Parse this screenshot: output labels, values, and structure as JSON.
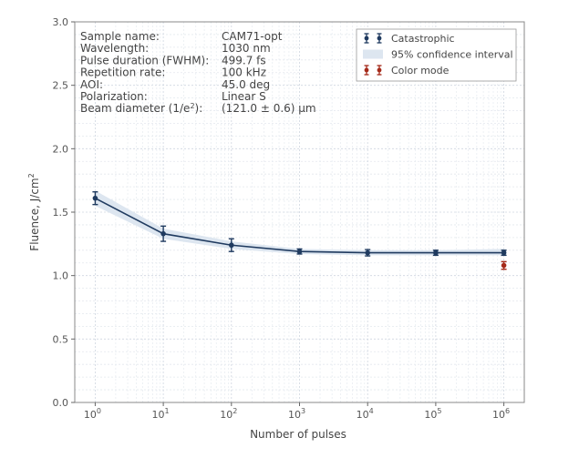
{
  "chart_data": {
    "type": "line",
    "xscale": "log",
    "xlabel": "Number of pulses",
    "ylabel_main": "Fluence, J/cm",
    "ylabel_sup": "2",
    "ylim": [
      0,
      3.0
    ],
    "xlim_exp": [
      -0.3,
      6.3
    ],
    "x_ticks": [
      {
        "base": "10",
        "exp": "0"
      },
      {
        "base": "10",
        "exp": "1"
      },
      {
        "base": "10",
        "exp": "2"
      },
      {
        "base": "10",
        "exp": "3"
      },
      {
        "base": "10",
        "exp": "4"
      },
      {
        "base": "10",
        "exp": "5"
      },
      {
        "base": "10",
        "exp": "6"
      }
    ],
    "y_ticks": [
      "0.0",
      "0.5",
      "1.0",
      "1.5",
      "2.0",
      "2.5",
      "3.0"
    ],
    "series": [
      {
        "name": "Catastrophic",
        "color": "#1f3a5f",
        "x": [
          1,
          10,
          100,
          1000,
          10000,
          100000,
          1000000
        ],
        "values": [
          1.61,
          1.33,
          1.24,
          1.19,
          1.18,
          1.18,
          1.18
        ],
        "err": [
          0.05,
          0.06,
          0.05,
          0.02,
          0.025,
          0.02,
          0.02
        ]
      },
      {
        "name": "Color mode",
        "color": "#a52a1a",
        "x": [
          1000000
        ],
        "values": [
          1.08
        ],
        "err": [
          0.03
        ]
      }
    ],
    "band": {
      "name": "95% confidence interval",
      "color": "#dde6f0",
      "upper": [
        1.67,
        1.37,
        1.27,
        1.21,
        1.2,
        1.2,
        1.21
      ],
      "lower": [
        1.55,
        1.29,
        1.21,
        1.17,
        1.16,
        1.16,
        1.16
      ]
    },
    "legend": [
      {
        "label": "Catastrophic",
        "kind": "errorbar",
        "color": "#1f3a5f"
      },
      {
        "label": "95% confidence interval",
        "kind": "band",
        "color": "#dde6f0"
      },
      {
        "label": "Color mode",
        "kind": "errorbar",
        "color": "#a52a1a"
      }
    ],
    "legend_position": "top-right"
  },
  "info_table": [
    {
      "key": "Sample name:",
      "value": "CAM71-opt"
    },
    {
      "key": "Wavelength:",
      "value": "1030 nm"
    },
    {
      "key": "Pulse duration (FWHM):",
      "value": "499.7 fs"
    },
    {
      "key": "Repetition rate:",
      "value": "100 kHz"
    },
    {
      "key": "AOI:",
      "value": "45.0 deg"
    },
    {
      "key": "Polarization:",
      "value": "Linear S"
    },
    {
      "key": "Beam diameter (1/e",
      "key_sup": "2",
      "key_end": "):",
      "value": "(121.0 ± 0.6) μm"
    }
  ]
}
